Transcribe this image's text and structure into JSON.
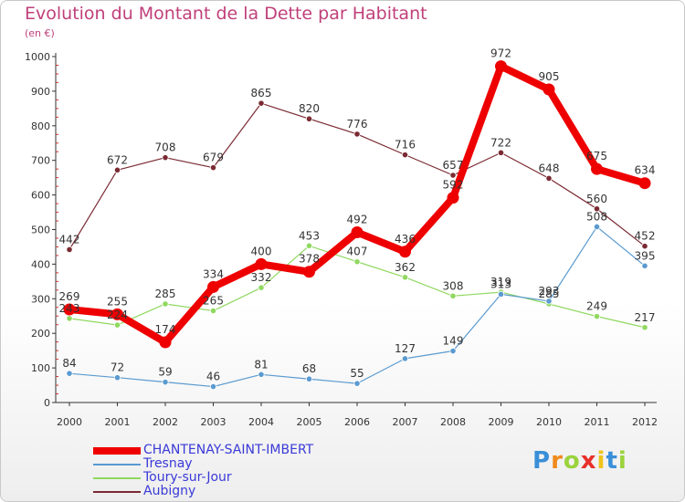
{
  "chart_data": {
    "type": "line",
    "title": "Evolution du Montant de la Dette par Habitant",
    "subtitle": "(en €)",
    "xlabel": "",
    "ylabel": "",
    "categories": [
      "2000",
      "2001",
      "2002",
      "2003",
      "2004",
      "2005",
      "2006",
      "2007",
      "2008",
      "2009",
      "2010",
      "2011",
      "2012"
    ],
    "ylim": [
      0,
      1000
    ],
    "yticks": [
      0,
      100,
      200,
      300,
      400,
      500,
      600,
      700,
      800,
      900,
      1000
    ],
    "grid": false,
    "legend": "bottom-left",
    "series": [
      {
        "name": "Aubigny",
        "color": "#7a2a32",
        "values": [
          442,
          672,
          708,
          679,
          865,
          820,
          776,
          716,
          657,
          722,
          648,
          560,
          452
        ]
      },
      {
        "name": "Toury-sur-Jour",
        "color": "#90d860",
        "values": [
          243,
          224,
          285,
          265,
          332,
          453,
          407,
          362,
          308,
          319,
          285,
          249,
          217
        ]
      },
      {
        "name": "Tresnay",
        "color": "#5a9ad0",
        "values": [
          84,
          72,
          59,
          46,
          81,
          68,
          55,
          127,
          149,
          313,
          293,
          508,
          395
        ]
      },
      {
        "name": "CHANTENAY-SAINT-IMBERT",
        "color": "#ee0000",
        "values": [
          269,
          255,
          174,
          334,
          400,
          378,
          492,
          436,
          592,
          972,
          905,
          675,
          634
        ]
      }
    ]
  },
  "legend_items": [
    {
      "label": "CHANTENAY-SAINT-IMBERT",
      "color": "#ee0000"
    },
    {
      "label": "Tresnay",
      "color": "#5a9ad0"
    },
    {
      "label": "Toury-sur-Jour",
      "color": "#90d860"
    },
    {
      "label": "Aubigny",
      "color": "#7a2a32"
    }
  ],
  "logo": {
    "letters": [
      "P",
      "r",
      "o",
      "x",
      "i",
      "t",
      "i"
    ],
    "colors": [
      "#3a8fd8",
      "#f08a1c",
      "#9ad33c",
      "#e8302a",
      "#f0c419",
      "#3a8fd8",
      "#9ad33c"
    ]
  }
}
